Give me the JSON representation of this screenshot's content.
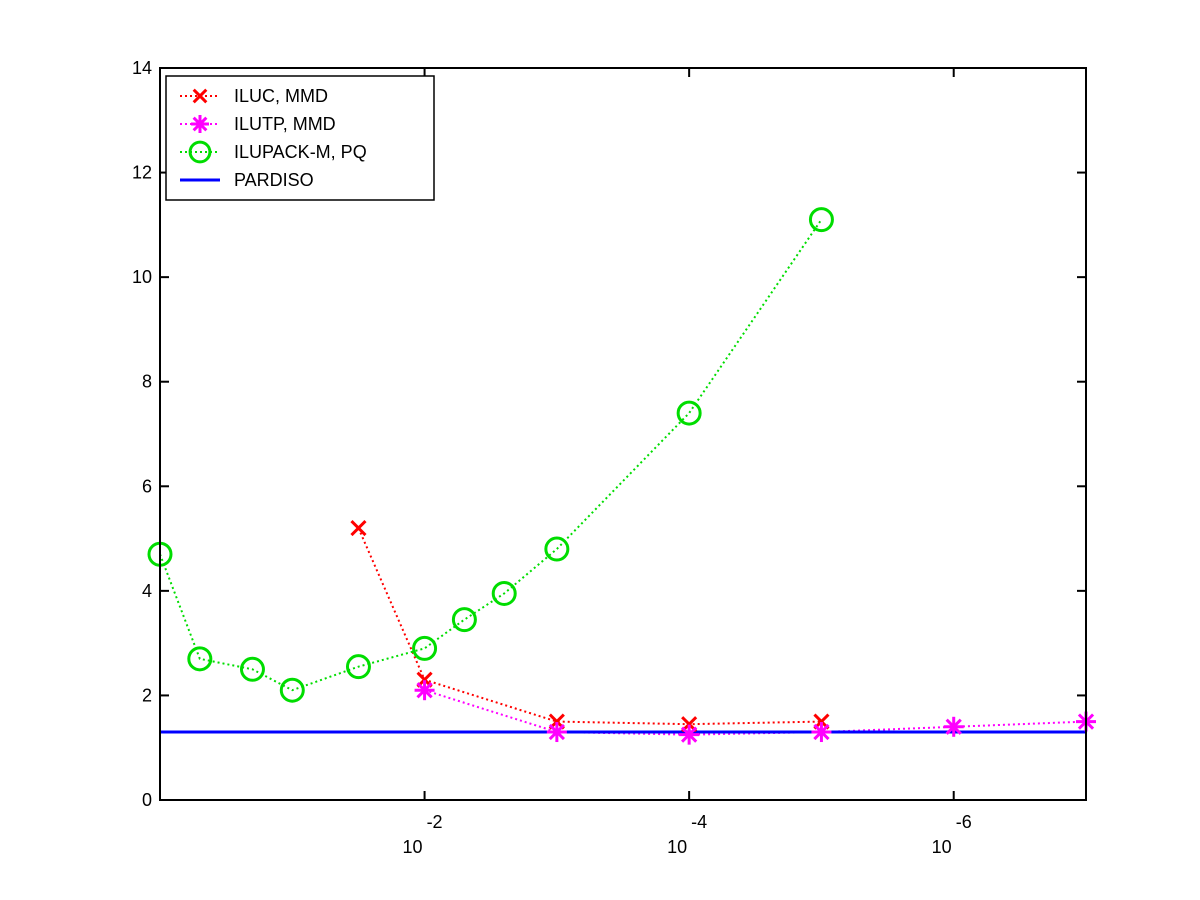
{
  "chart_data": {
    "type": "line",
    "title": "",
    "xlabel": "",
    "ylabel": "",
    "x_scale": "log",
    "x_direction": "decreasing",
    "xlim": [
      1,
      1e-07
    ],
    "ylim": [
      0,
      14
    ],
    "y_ticks": [
      0,
      2,
      4,
      6,
      8,
      10,
      12,
      14
    ],
    "x_ticks": [
      {
        "value": 0.01,
        "base": "10",
        "exponent": "-2"
      },
      {
        "value": 0.0001,
        "base": "10",
        "exponent": "-4"
      },
      {
        "value": 1e-06,
        "base": "10",
        "exponent": "-6"
      }
    ],
    "grid": false,
    "legend_position": "top-left",
    "series": [
      {
        "name": "ILUC, MMD",
        "color": "#ff0000",
        "marker": "x",
        "line_style": "dotted",
        "x": [
          0.0316,
          0.01,
          0.001,
          0.0001,
          1e-05
        ],
        "y": [
          5.2,
          2.3,
          1.5,
          1.45,
          1.5
        ]
      },
      {
        "name": "ILUTP, MMD",
        "color": "#ff00ff",
        "marker": "asterisk",
        "line_style": "dotted",
        "x": [
          0.01,
          0.001,
          0.0001,
          1e-05,
          1e-06,
          1e-07
        ],
        "y": [
          2.1,
          1.3,
          1.25,
          1.3,
          1.4,
          1.5
        ]
      },
      {
        "name": "ILUPACK-M, PQ",
        "color": "#00dd00",
        "marker": "circle",
        "line_style": "dotted",
        "x": [
          1,
          0.5,
          0.2,
          0.1,
          0.0316,
          0.01,
          0.005,
          0.0025,
          0.001,
          0.0001,
          1e-05
        ],
        "y": [
          4.7,
          2.7,
          2.5,
          2.1,
          2.55,
          2.9,
          3.45,
          3.95,
          4.8,
          7.4,
          11.1
        ]
      },
      {
        "name": "PARDISO",
        "color": "#0000ff",
        "marker": "none",
        "line_style": "solid",
        "x": [
          1,
          1e-07
        ],
        "y": [
          1.3,
          1.3
        ]
      }
    ]
  }
}
